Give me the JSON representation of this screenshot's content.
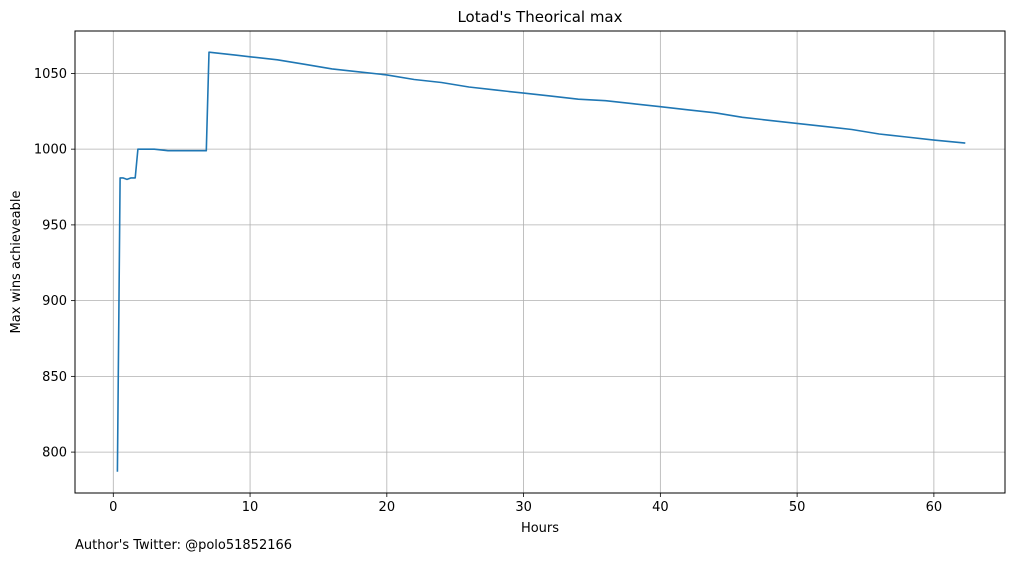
{
  "chart_data": {
    "type": "line",
    "title": "Lotad's Theorical max",
    "xlabel": "Hours",
    "ylabel": "Max wins achieveable",
    "xlim": [
      -2.8,
      65.2
    ],
    "ylim": [
      773,
      1078
    ],
    "xticks": [
      0,
      10,
      20,
      30,
      40,
      50,
      60
    ],
    "yticks": [
      800,
      850,
      900,
      950,
      1000,
      1050
    ],
    "grid": true,
    "line_color": "#1f77b4",
    "series": [
      {
        "x": [
          0.3,
          0.5,
          0.7,
          1.0,
          1.3,
          1.6,
          1.8,
          2.0,
          3.0,
          4.0,
          5.0,
          6.0,
          6.8,
          7.0,
          8.0,
          9.0,
          10.0,
          12.0,
          14.0,
          16.0,
          18.0,
          20.0,
          22.0,
          24.0,
          26.0,
          28.0,
          30.0,
          32.0,
          34.0,
          36.0,
          38.0,
          40.0,
          42.0,
          44.0,
          46.0,
          48.0,
          50.0,
          52.0,
          54.0,
          56.0,
          58.0,
          60.0,
          62.3
        ],
        "y": [
          787,
          981,
          981,
          980,
          981,
          981,
          1000,
          1000,
          1000,
          999,
          999,
          999,
          999,
          1064,
          1063,
          1062,
          1061,
          1059,
          1056,
          1053,
          1051,
          1049,
          1046,
          1044,
          1041,
          1039,
          1037,
          1035,
          1033,
          1032,
          1030,
          1028,
          1026,
          1024,
          1021,
          1019,
          1017,
          1015,
          1013,
          1010,
          1008,
          1006,
          1004
        ]
      }
    ]
  },
  "footer": "Author's Twitter: @polo51852166"
}
